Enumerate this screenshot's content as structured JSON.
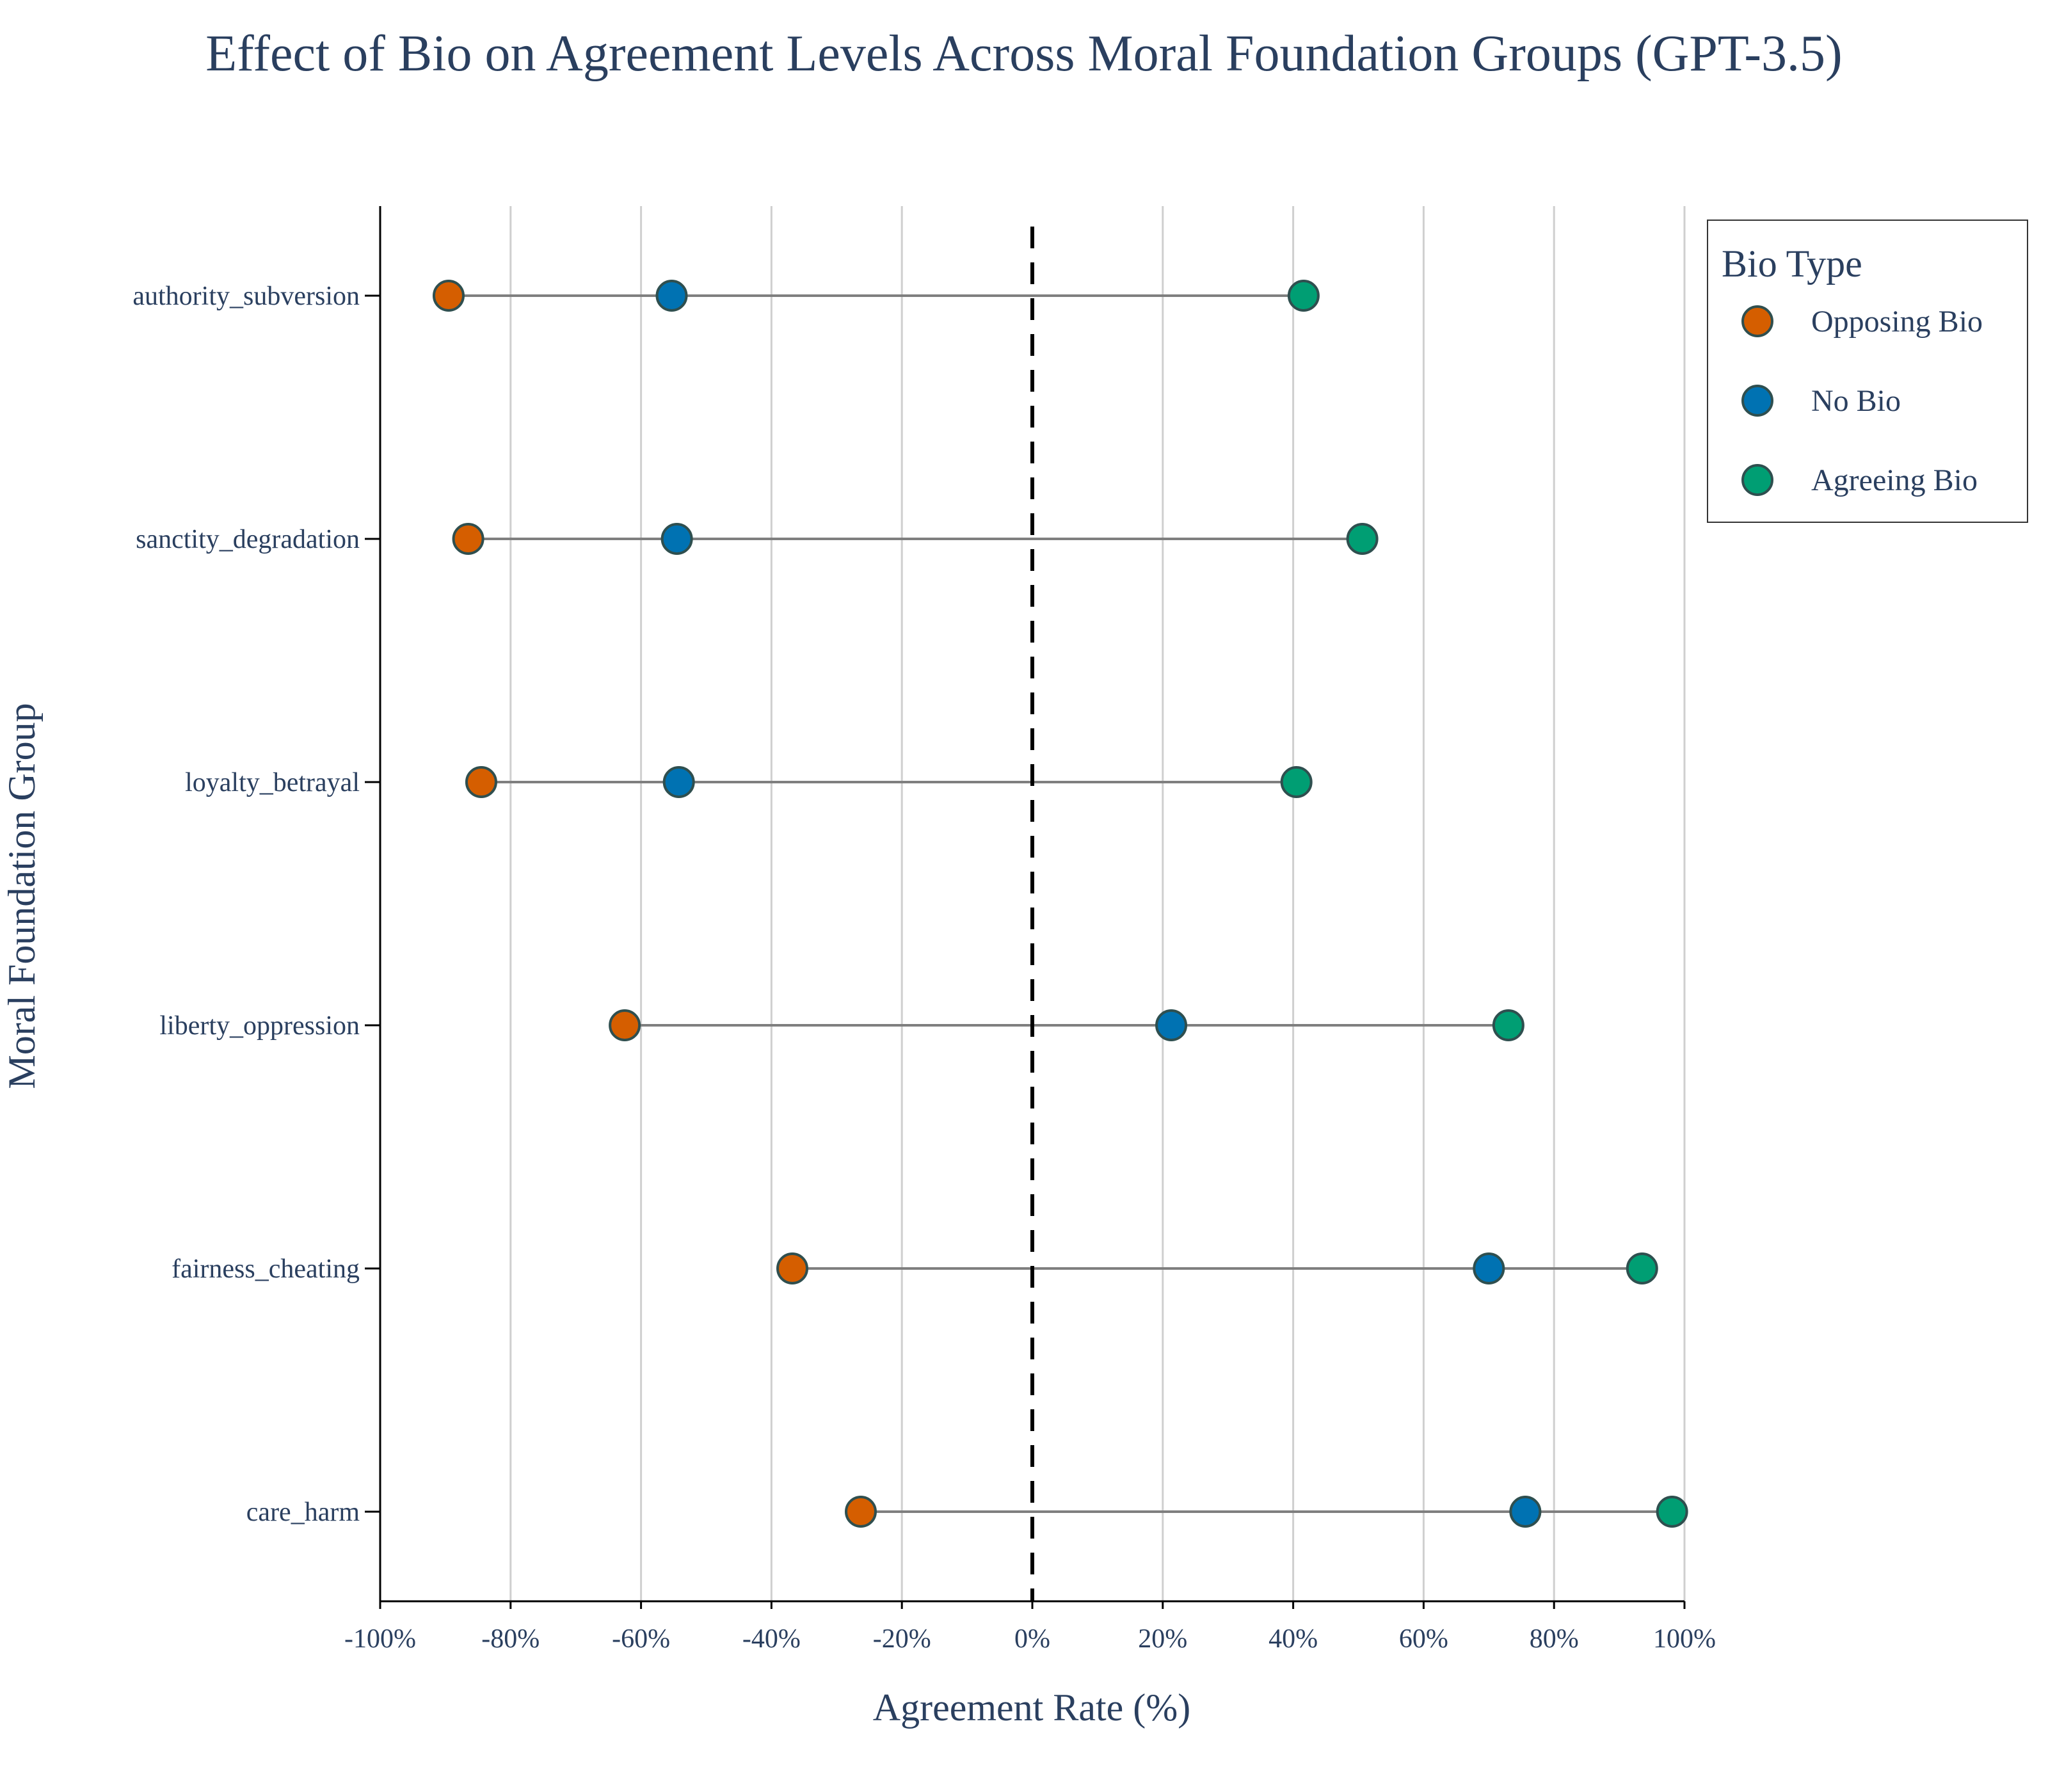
{
  "chart_data": {
    "type": "dumbbell",
    "title": "Effect of Bio on Agreement Levels Across Moral Foundation Groups (GPT-3.5)",
    "xlabel": "Agreement Rate (%)",
    "ylabel": "Moral Foundation Group",
    "xlim": [
      -100,
      100
    ],
    "xticks": [
      -100,
      -80,
      -60,
      -40,
      -20,
      0,
      20,
      40,
      60,
      80,
      100
    ],
    "xtick_labels": [
      "-100%",
      "-80%",
      "-60%",
      "-40%",
      "-20%",
      "0%",
      "20%",
      "40%",
      "60%",
      "80%",
      "100%"
    ],
    "grid": "vertical",
    "reference_line": {
      "x": 0,
      "style": "dashed"
    },
    "categories": [
      "authority_subversion",
      "sanctity_degradation",
      "loyalty_betrayal",
      "liberty_oppression",
      "fairness_cheating",
      "care_harm"
    ],
    "series": [
      {
        "name": "Opposing Bio",
        "color": "#D55E00",
        "values": [
          -89.5,
          -86.5,
          -84.5,
          -62.5,
          -36.8,
          -26.3
        ]
      },
      {
        "name": "No Bio",
        "color": "#0072B2",
        "values": [
          -55.3,
          -54.5,
          -54.2,
          21.3,
          70.0,
          75.6
        ]
      },
      {
        "name": "Agreeing Bio",
        "color": "#009E73",
        "values": [
          41.6,
          50.6,
          40.5,
          73.0,
          93.5,
          98.1
        ]
      }
    ],
    "legend": {
      "title": "Bio Type",
      "position": "top-right"
    }
  }
}
